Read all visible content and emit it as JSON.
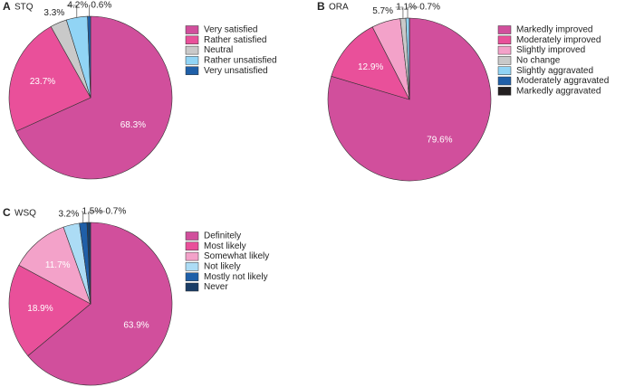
{
  "chart_data": [
    {
      "type": "pie",
      "panel": "A",
      "title": "STQ",
      "categories": [
        "Very satisfied",
        "Rather satisfied",
        "Neutral",
        "Rather unsatisfied",
        "Very unsatisfied"
      ],
      "values": [
        68.3,
        23.7,
        3.3,
        4.2,
        0.6
      ],
      "value_labels": [
        "68.3%",
        "23.7%",
        "3.3%",
        "4.2%",
        "0.6%"
      ],
      "colors": [
        "#d14f9c",
        "#e9509a",
        "#c9c9c9",
        "#91d4f5",
        "#1f5fa8"
      ]
    },
    {
      "type": "pie",
      "panel": "B",
      "title": "ORA",
      "categories": [
        "Markedly improved",
        "Moderately improved",
        "Slightly improved",
        "No change",
        "Slightly aggravated",
        "Moderately aggravated",
        "Markedly aggravated"
      ],
      "values": [
        79.6,
        12.9,
        5.7,
        1.1,
        0.7,
        0,
        0
      ],
      "value_labels": [
        "79.6%",
        "12.9%",
        "5.7%",
        "1.1%",
        "0.7%",
        null,
        null
      ],
      "colors": [
        "#d14f9c",
        "#e9509a",
        "#f3a2c9",
        "#c9c9c9",
        "#91d4f5",
        "#1f5fa8",
        "#231f20"
      ]
    },
    {
      "type": "pie",
      "panel": "C",
      "title": "WSQ",
      "categories": [
        "Definitely",
        "Most likely",
        "Somewhat likely",
        "Not likely",
        "Mostly not likely",
        "Never"
      ],
      "values": [
        63.9,
        18.9,
        11.7,
        3.2,
        1.5,
        0.7
      ],
      "value_labels": [
        "63.9%",
        "18.9%",
        "11.7%",
        "3.2%",
        "1.5%",
        "0.7%"
      ],
      "colors": [
        "#d14f9c",
        "#e9509a",
        "#f3a2c9",
        "#acdcf5",
        "#1f5fa8",
        "#1a3d66"
      ]
    }
  ]
}
